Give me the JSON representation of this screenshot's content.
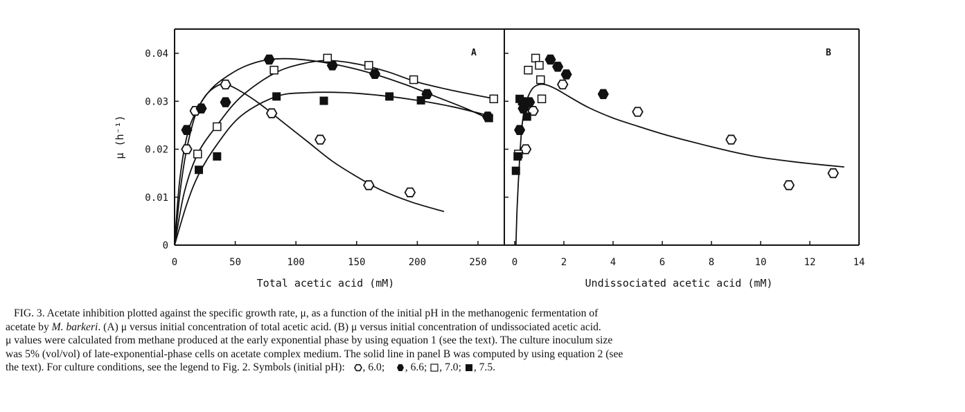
{
  "chart_data": [
    {
      "type": "scatter",
      "panel_label": "A",
      "title": "",
      "xlabel": "Total acetic acid (mM)",
      "ylabel": "μ (h⁻¹)",
      "xlim": [
        0,
        265
      ],
      "ylim": [
        0,
        0.045
      ],
      "xticks": [
        0,
        50,
        100,
        150,
        200,
        250
      ],
      "xtick_labels": [
        "0",
        "50",
        "100",
        "150",
        "200",
        "250"
      ],
      "yticks": [
        0,
        0.01,
        0.02,
        0.03,
        0.04
      ],
      "ytick_labels": [
        "0",
        "0.01",
        "0.02",
        "0.03",
        "0.04"
      ],
      "grid": false,
      "series": [
        {
          "name": "pH 6.0",
          "marker": "open-hexagon",
          "points": [
            [
              10,
              0.02
            ],
            [
              17,
              0.028
            ],
            [
              42,
              0.0335
            ],
            [
              80,
              0.0275
            ],
            [
              120,
              0.022
            ],
            [
              160,
              0.0125
            ],
            [
              194,
              0.011
            ]
          ],
          "curve": [
            [
              0,
              0
            ],
            [
              5,
              0.012
            ],
            [
              10,
              0.02
            ],
            [
              17,
              0.027
            ],
            [
              25,
              0.031
            ],
            [
              35,
              0.0332
            ],
            [
              43,
              0.0335
            ],
            [
              55,
              0.032
            ],
            [
              70,
              0.0295
            ],
            [
              90,
              0.0255
            ],
            [
              110,
              0.0215
            ],
            [
              130,
              0.0175
            ],
            [
              150,
              0.0143
            ],
            [
              170,
              0.0115
            ],
            [
              195,
              0.009
            ],
            [
              222,
              0.007
            ]
          ]
        },
        {
          "name": "pH 6.6",
          "marker": "filled-hexagon",
          "points": [
            [
              10,
              0.024
            ],
            [
              22,
              0.0285
            ],
            [
              42,
              0.0298
            ],
            [
              78,
              0.0387
            ],
            [
              130,
              0.0375
            ],
            [
              165,
              0.0357
            ],
            [
              208,
              0.0315
            ],
            [
              258,
              0.0268
            ]
          ],
          "curve": [
            [
              0,
              0
            ],
            [
              4,
              0.013
            ],
            [
              10,
              0.0225
            ],
            [
              18,
              0.028
            ],
            [
              30,
              0.0325
            ],
            [
              45,
              0.0355
            ],
            [
              60,
              0.0375
            ],
            [
              78,
              0.0387
            ],
            [
              100,
              0.0388
            ],
            [
              130,
              0.0378
            ],
            [
              160,
              0.036
            ],
            [
              190,
              0.0335
            ],
            [
              215,
              0.031
            ],
            [
              240,
              0.0285
            ],
            [
              262,
              0.026
            ]
          ]
        },
        {
          "name": "pH 7.0",
          "marker": "open-square",
          "points": [
            [
              19,
              0.019
            ],
            [
              35,
              0.0247
            ],
            [
              82,
              0.0365
            ],
            [
              126,
              0.039
            ],
            [
              160,
              0.0375
            ],
            [
              197,
              0.0345
            ],
            [
              263,
              0.0305
            ]
          ],
          "curve": [
            [
              0,
              0
            ],
            [
              8,
              0.011
            ],
            [
              19,
              0.019
            ],
            [
              35,
              0.025
            ],
            [
              55,
              0.031
            ],
            [
              82,
              0.0358
            ],
            [
              105,
              0.0378
            ],
            [
              126,
              0.0385
            ],
            [
              150,
              0.0378
            ],
            [
              175,
              0.0362
            ],
            [
              200,
              0.034
            ],
            [
              230,
              0.0322
            ],
            [
              264,
              0.0305
            ]
          ]
        },
        {
          "name": "pH 7.5",
          "marker": "filled-square",
          "points": [
            [
              20,
              0.0157
            ],
            [
              35,
              0.0185
            ],
            [
              84,
              0.031
            ],
            [
              123,
              0.0301
            ],
            [
              177,
              0.031
            ],
            [
              203,
              0.0302
            ],
            [
              259,
              0.0265
            ]
          ],
          "curve": [
            [
              0,
              0
            ],
            [
              10,
              0.0085
            ],
            [
              20,
              0.0148
            ],
            [
              35,
              0.021
            ],
            [
              55,
              0.027
            ],
            [
              84,
              0.031
            ],
            [
              110,
              0.0318
            ],
            [
              140,
              0.0318
            ],
            [
              170,
              0.0312
            ],
            [
              200,
              0.0302
            ],
            [
              230,
              0.0288
            ],
            [
              262,
              0.0268
            ]
          ]
        }
      ]
    },
    {
      "type": "scatter",
      "panel_label": "B",
      "title": "",
      "xlabel": "Undissociated acetic acid (mM)",
      "ylabel": "μ (h⁻¹)",
      "xlim": [
        -0.15,
        14
      ],
      "ylim": [
        0,
        0.045
      ],
      "xticks": [
        0,
        2,
        4,
        6,
        8,
        10,
        12,
        14
      ],
      "xtick_labels": [
        "0",
        "2",
        "4",
        "6",
        "8",
        "10",
        "12",
        "14"
      ],
      "grid": false,
      "series": [
        {
          "name": "pH 6.0",
          "marker": "open-hexagon",
          "points": [
            [
              0.45,
              0.02
            ],
            [
              0.75,
              0.028
            ],
            [
              1.95,
              0.0335
            ],
            [
              5.0,
              0.0278
            ],
            [
              8.8,
              0.022
            ],
            [
              11.15,
              0.0125
            ],
            [
              12.95,
              0.015
            ]
          ]
        },
        {
          "name": "pH 6.6",
          "marker": "filled-hexagon",
          "points": [
            [
              0.2,
              0.024
            ],
            [
              0.35,
              0.0285
            ],
            [
              0.6,
              0.0298
            ],
            [
              1.45,
              0.0387
            ],
            [
              1.75,
              0.0372
            ],
            [
              2.1,
              0.0356
            ],
            [
              3.6,
              0.0315
            ]
          ]
        },
        {
          "name": "pH 7.0",
          "marker": "open-square",
          "points": [
            [
              0.15,
              0.019
            ],
            [
              0.55,
              0.0365
            ],
            [
              0.85,
              0.039
            ],
            [
              1.0,
              0.0375
            ],
            [
              1.05,
              0.0345
            ],
            [
              1.1,
              0.0305
            ]
          ]
        },
        {
          "name": "pH 7.5",
          "marker": "filled-square",
          "points": [
            [
              0.05,
              0.0155
            ],
            [
              0.12,
              0.0185
            ],
            [
              0.2,
              0.0305
            ],
            [
              0.3,
              0.03
            ],
            [
              0.5,
              0.0295
            ],
            [
              0.5,
              0.0268
            ]
          ]
        }
      ],
      "model_curve": {
        "name": "equation 2",
        "points": [
          [
            0.05,
            0
          ],
          [
            0.1,
            0.008
          ],
          [
            0.2,
            0.018
          ],
          [
            0.3,
            0.025
          ],
          [
            0.45,
            0.0295
          ],
          [
            0.7,
            0.0325
          ],
          [
            1.0,
            0.0335
          ],
          [
            1.3,
            0.0334
          ],
          [
            1.7,
            0.0325
          ],
          [
            2.2,
            0.031
          ],
          [
            3.0,
            0.0287
          ],
          [
            4.0,
            0.0265
          ],
          [
            5.0,
            0.0248
          ],
          [
            6.0,
            0.0232
          ],
          [
            7.0,
            0.0218
          ],
          [
            8.0,
            0.0205
          ],
          [
            9.0,
            0.0193
          ],
          [
            10.0,
            0.0183
          ],
          [
            11.0,
            0.0176
          ],
          [
            12.0,
            0.017
          ],
          [
            13.4,
            0.0163
          ]
        ]
      }
    }
  ],
  "caption": {
    "line1": "FIG. 3. Acetate inhibition plotted against the specific growth rate, μ, as a function of the initial pH in the methanogenic fermentation of",
    "line2_pre": "acetate by ",
    "line2_em": "M. barkeri",
    "line2_post": ". (A) μ versus initial concentration of total acetic acid. (B) μ versus initial concentration of undissociated acetic acid.",
    "line3": "μ values were calculated from methane produced at the early exponential phase by using equation 1 (see the text). The culture inoculum size",
    "line4": "was 5% (vol/vol) of late-exponential-phase cells on acetate complex medium. The solid line in panel B was computed by using equation 2 (see",
    "line5_pre": "the text). For culture conditions, see the legend to Fig. 2. Symbols (initial pH):",
    "legend": [
      {
        "symbol": "open-hexagon",
        "label": ", 6.0;"
      },
      {
        "symbol": "filled-hexagon",
        "label": ", 6.6;"
      },
      {
        "symbol": "open-square",
        "label": ", 7.0;"
      },
      {
        "symbol": "filled-square",
        "label": ", 7.5."
      }
    ]
  }
}
